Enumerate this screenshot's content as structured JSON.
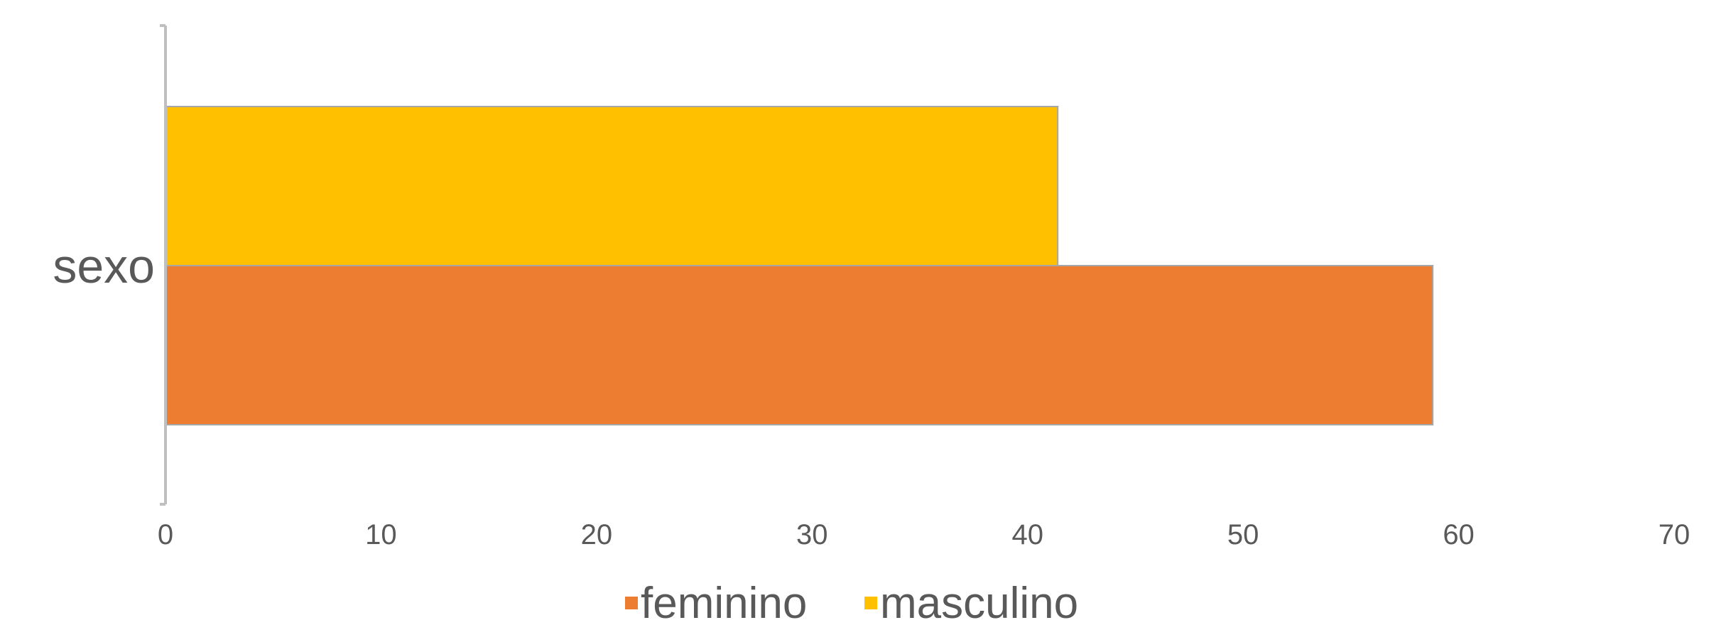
{
  "chart_data": {
    "type": "bar",
    "orientation": "horizontal",
    "categories": [
      "sexo"
    ],
    "series": [
      {
        "name": "feminino",
        "values": [
          58.8
        ],
        "color": "#ED7D31"
      },
      {
        "name": "masculino",
        "values": [
          41.4
        ],
        "color": "#FFC000"
      }
    ],
    "xlim": [
      0,
      70
    ],
    "xticks": [
      "0",
      "10",
      "20",
      "30",
      "40",
      "50",
      "60",
      "70"
    ],
    "legend": "bottom",
    "grid": false
  }
}
